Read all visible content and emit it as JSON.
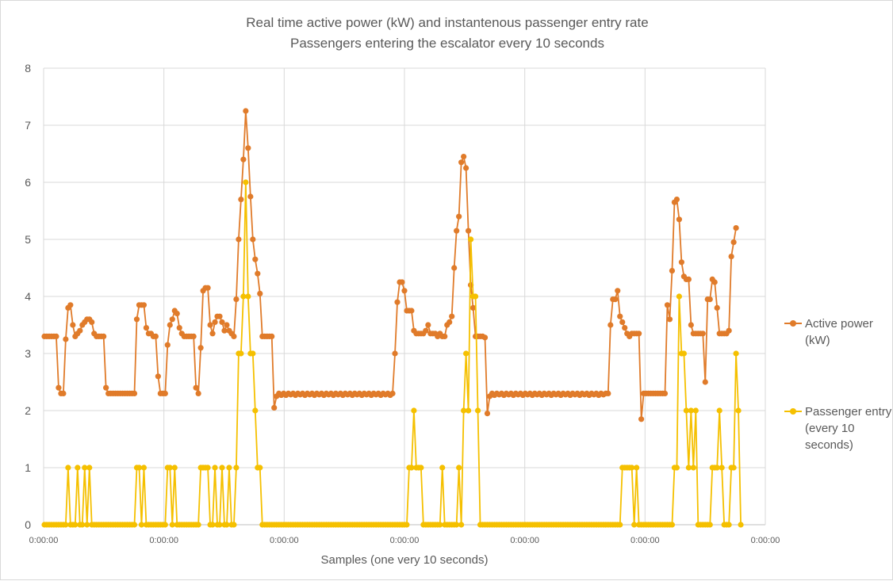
{
  "chart_data": {
    "type": "line",
    "title": "Real time active power (kW) and instantenous passenger entry rate",
    "subtitle": "Passengers entering the escalator every 10 seconds",
    "xlabel": "Samples (one very 10 seconds)",
    "ylabel": "",
    "ylim": [
      0,
      8
    ],
    "yticks": [
      "0",
      "1",
      "2",
      "3",
      "4",
      "5",
      "6",
      "7",
      "8"
    ],
    "xtick_labels": [
      "0:00:00",
      "0:00:00",
      "0:00:00",
      "0:00:00",
      "0:00:00",
      "0:00:00",
      "0:00:00"
    ],
    "grid": true,
    "legend_position": "right",
    "sample_count": 300,
    "series": [
      {
        "name": "Active power (kW)",
        "color": "#e07b2a",
        "values": [
          3.3,
          3.3,
          3.3,
          3.3,
          3.3,
          3.3,
          2.4,
          2.3,
          2.3,
          3.25,
          3.8,
          3.85,
          3.5,
          3.3,
          3.35,
          3.4,
          3.5,
          3.55,
          3.6,
          3.6,
          3.55,
          3.35,
          3.3,
          3.3,
          3.3,
          3.3,
          2.4,
          2.3,
          2.3,
          2.3,
          2.3,
          2.3,
          2.3,
          2.3,
          2.3,
          2.3,
          2.3,
          2.3,
          2.3,
          3.6,
          3.85,
          3.85,
          3.85,
          3.45,
          3.35,
          3.35,
          3.3,
          3.3,
          2.6,
          2.3,
          2.3,
          2.3,
          3.15,
          3.5,
          3.6,
          3.75,
          3.7,
          3.45,
          3.35,
          3.3,
          3.3,
          3.3,
          3.3,
          3.3,
          2.4,
          2.3,
          3.1,
          4.1,
          4.15,
          4.15,
          3.5,
          3.35,
          3.55,
          3.65,
          3.65,
          3.55,
          3.4,
          3.5,
          3.4,
          3.35,
          3.3,
          3.95,
          5.0,
          5.7,
          6.4,
          7.25,
          6.6,
          5.75,
          5.0,
          4.65,
          4.4,
          4.05,
          3.3,
          3.3,
          3.3,
          3.3,
          3.3,
          2.05,
          2.25,
          2.3,
          2.27,
          2.3,
          2.27,
          2.3,
          2.28,
          2.3,
          2.27,
          2.3,
          2.28,
          2.3,
          2.27,
          2.3,
          2.28,
          2.3,
          2.27,
          2.3,
          2.28,
          2.3,
          2.27,
          2.3,
          2.28,
          2.3,
          2.27,
          2.3,
          2.28,
          2.3,
          2.27,
          2.3,
          2.28,
          2.3,
          2.27,
          2.3,
          2.28,
          2.3,
          2.27,
          2.3,
          2.28,
          2.3,
          2.27,
          2.3,
          2.28,
          2.3,
          2.27,
          2.3,
          2.28,
          2.3,
          2.27,
          2.3,
          3.0,
          3.9,
          4.25,
          4.25,
          4.1,
          3.75,
          3.75,
          3.75,
          3.4,
          3.35,
          3.35,
          3.35,
          3.35,
          3.4,
          3.5,
          3.35,
          3.35,
          3.35,
          3.3,
          3.35,
          3.3,
          3.3,
          3.5,
          3.55,
          3.65,
          4.5,
          5.15,
          5.4,
          6.35,
          6.45,
          6.25,
          5.15,
          4.2,
          3.8,
          3.3,
          3.3,
          3.3,
          3.3,
          3.28,
          1.95,
          2.25,
          2.3,
          2.27,
          2.3,
          2.28,
          2.3,
          2.27,
          2.3,
          2.28,
          2.3,
          2.27,
          2.3,
          2.28,
          2.3,
          2.27,
          2.3,
          2.28,
          2.3,
          2.27,
          2.3,
          2.28,
          2.3,
          2.27,
          2.3,
          2.28,
          2.3,
          2.27,
          2.3,
          2.28,
          2.3,
          2.27,
          2.3,
          2.28,
          2.3,
          2.27,
          2.3,
          2.28,
          2.3,
          2.27,
          2.3,
          2.28,
          2.3,
          2.27,
          2.3,
          2.28,
          2.3,
          2.27,
          2.3,
          2.28,
          2.3,
          2.3,
          3.5,
          3.95,
          3.95,
          4.1,
          3.65,
          3.55,
          3.45,
          3.35,
          3.3,
          3.35,
          3.35,
          3.35,
          3.35,
          1.85,
          2.3,
          2.3,
          2.3,
          2.3,
          2.3,
          2.3,
          2.3,
          2.3,
          2.3,
          2.3,
          3.85,
          3.6,
          4.45,
          5.65,
          5.7,
          5.35,
          4.6,
          4.35,
          4.3,
          4.3,
          3.5,
          3.35,
          3.35,
          3.35,
          3.35,
          3.35,
          2.5,
          3.95,
          3.95,
          4.3,
          4.25,
          3.8,
          3.35,
          3.35,
          3.35,
          3.35,
          3.4,
          4.7,
          4.95,
          5.2
        ]
      },
      {
        "name": "Passenger entry (every 10 seconds)",
        "color": "#f5c000",
        "values": [
          0,
          0,
          0,
          0,
          0,
          0,
          0,
          0,
          0,
          0,
          1,
          0,
          0,
          0,
          1,
          0,
          0,
          1,
          0,
          1,
          0,
          0,
          0,
          0,
          0,
          0,
          0,
          0,
          0,
          0,
          0,
          0,
          0,
          0,
          0,
          0,
          0,
          0,
          0,
          1,
          1,
          0,
          1,
          0,
          0,
          0,
          0,
          0,
          0,
          0,
          0,
          0,
          1,
          1,
          0,
          1,
          0,
          0,
          0,
          0,
          0,
          0,
          0,
          0,
          0,
          0,
          1,
          1,
          1,
          1,
          0,
          0,
          1,
          0,
          0,
          1,
          0,
          0,
          1,
          0,
          0,
          1,
          3,
          3,
          4,
          6,
          4,
          3,
          3,
          2,
          1,
          1,
          0,
          0,
          0,
          0,
          0,
          0,
          0,
          0,
          0,
          0,
          0,
          0,
          0,
          0,
          0,
          0,
          0,
          0,
          0,
          0,
          0,
          0,
          0,
          0,
          0,
          0,
          0,
          0,
          0,
          0,
          0,
          0,
          0,
          0,
          0,
          0,
          0,
          0,
          0,
          0,
          0,
          0,
          0,
          0,
          0,
          0,
          0,
          0,
          0,
          0,
          0,
          0,
          0,
          0,
          0,
          0,
          0,
          0,
          0,
          0,
          0,
          0,
          1,
          1,
          2,
          1,
          1,
          1,
          0,
          0,
          0,
          0,
          0,
          0,
          0,
          0,
          1,
          0,
          0,
          0,
          0,
          0,
          0,
          1,
          0,
          2,
          3,
          2,
          5,
          4,
          4,
          2,
          0,
          0,
          0,
          0,
          0,
          0,
          0,
          0,
          0,
          0,
          0,
          0,
          0,
          0,
          0,
          0,
          0,
          0,
          0,
          0,
          0,
          0,
          0,
          0,
          0,
          0,
          0,
          0,
          0,
          0,
          0,
          0,
          0,
          0,
          0,
          0,
          0,
          0,
          0,
          0,
          0,
          0,
          0,
          0,
          0,
          0,
          0,
          0,
          0,
          0,
          0,
          0,
          0,
          0,
          0,
          0,
          0,
          0,
          0,
          0,
          1,
          1,
          1,
          1,
          1,
          0,
          1,
          0,
          0,
          0,
          0,
          0,
          0,
          0,
          0,
          0,
          0,
          0,
          0,
          0,
          0,
          0,
          1,
          1,
          4,
          3,
          3,
          2,
          1,
          2,
          1,
          2,
          0,
          0,
          0,
          0,
          0,
          0,
          1,
          1,
          1,
          2,
          1,
          0,
          0,
          0,
          1,
          1,
          3,
          2,
          0
        ]
      }
    ]
  }
}
